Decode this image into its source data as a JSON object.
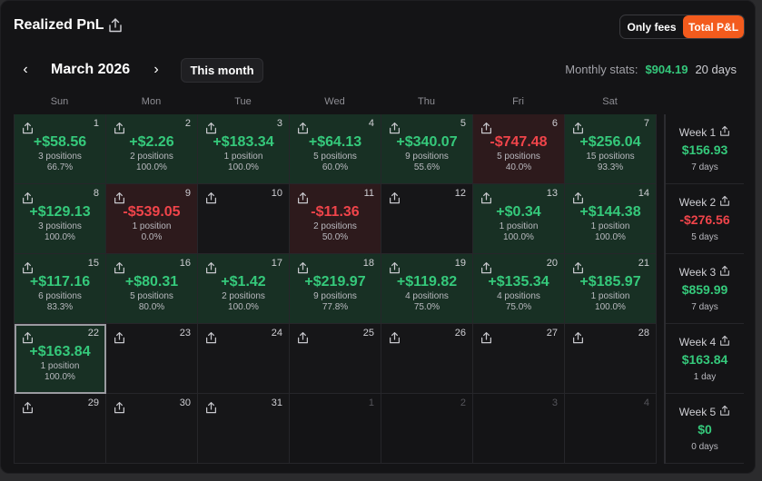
{
  "header": {
    "title": "Realized PnL",
    "toggle_only_fees": "Only fees",
    "toggle_total": "Total P&L"
  },
  "nav": {
    "prev": "‹",
    "next": "›",
    "month": "March 2026",
    "this_month": "This month"
  },
  "stats": {
    "label": "Monthly stats:",
    "value": "$904.19",
    "days": "20 days"
  },
  "weekdays": [
    "Sun",
    "Mon",
    "Tue",
    "Wed",
    "Thu",
    "Fri",
    "Sat"
  ],
  "days": [
    {
      "num": "1",
      "amount": "+$58.56",
      "positions": "3 positions",
      "rate": "66.7%",
      "kind": "pos"
    },
    {
      "num": "2",
      "amount": "+$2.26",
      "positions": "2 positions",
      "rate": "100.0%",
      "kind": "pos"
    },
    {
      "num": "3",
      "amount": "+$183.34",
      "positions": "1 position",
      "rate": "100.0%",
      "kind": "pos"
    },
    {
      "num": "4",
      "amount": "+$64.13",
      "positions": "5 positions",
      "rate": "60.0%",
      "kind": "pos"
    },
    {
      "num": "5",
      "amount": "+$340.07",
      "positions": "9 positions",
      "rate": "55.6%",
      "kind": "pos"
    },
    {
      "num": "6",
      "amount": "-$747.48",
      "positions": "5 positions",
      "rate": "40.0%",
      "kind": "neg"
    },
    {
      "num": "7",
      "amount": "+$256.04",
      "positions": "15 positions",
      "rate": "93.3%",
      "kind": "pos"
    },
    {
      "num": "8",
      "amount": "+$129.13",
      "positions": "3 positions",
      "rate": "100.0%",
      "kind": "pos"
    },
    {
      "num": "9",
      "amount": "-$539.05",
      "positions": "1 position",
      "rate": "0.0%",
      "kind": "neg"
    },
    {
      "num": "10",
      "amount": "",
      "positions": "",
      "rate": "",
      "kind": "empty"
    },
    {
      "num": "11",
      "amount": "-$11.36",
      "positions": "2 positions",
      "rate": "50.0%",
      "kind": "neg"
    },
    {
      "num": "12",
      "amount": "",
      "positions": "",
      "rate": "",
      "kind": "empty"
    },
    {
      "num": "13",
      "amount": "+$0.34",
      "positions": "1 position",
      "rate": "100.0%",
      "kind": "pos"
    },
    {
      "num": "14",
      "amount": "+$144.38",
      "positions": "1 position",
      "rate": "100.0%",
      "kind": "pos"
    },
    {
      "num": "15",
      "amount": "+$117.16",
      "positions": "6 positions",
      "rate": "83.3%",
      "kind": "pos"
    },
    {
      "num": "16",
      "amount": "+$80.31",
      "positions": "5 positions",
      "rate": "80.0%",
      "kind": "pos"
    },
    {
      "num": "17",
      "amount": "+$1.42",
      "positions": "2 positions",
      "rate": "100.0%",
      "kind": "pos"
    },
    {
      "num": "18",
      "amount": "+$219.97",
      "positions": "9 positions",
      "rate": "77.8%",
      "kind": "pos"
    },
    {
      "num": "19",
      "amount": "+$119.82",
      "positions": "4 positions",
      "rate": "75.0%",
      "kind": "pos"
    },
    {
      "num": "20",
      "amount": "+$135.34",
      "positions": "4 positions",
      "rate": "75.0%",
      "kind": "pos"
    },
    {
      "num": "21",
      "amount": "+$185.97",
      "positions": "1 position",
      "rate": "100.0%",
      "kind": "pos"
    },
    {
      "num": "22",
      "amount": "+$163.84",
      "positions": "1 position",
      "rate": "100.0%",
      "kind": "pos",
      "selected": true
    },
    {
      "num": "23",
      "amount": "",
      "positions": "",
      "rate": "",
      "kind": "empty"
    },
    {
      "num": "24",
      "amount": "",
      "positions": "",
      "rate": "",
      "kind": "empty"
    },
    {
      "num": "25",
      "amount": "",
      "positions": "",
      "rate": "",
      "kind": "empty"
    },
    {
      "num": "26",
      "amount": "",
      "positions": "",
      "rate": "",
      "kind": "empty"
    },
    {
      "num": "27",
      "amount": "",
      "positions": "",
      "rate": "",
      "kind": "empty"
    },
    {
      "num": "28",
      "amount": "",
      "positions": "",
      "rate": "",
      "kind": "empty"
    },
    {
      "num": "29",
      "amount": "",
      "positions": "",
      "rate": "",
      "kind": "empty"
    },
    {
      "num": "30",
      "amount": "",
      "positions": "",
      "rate": "",
      "kind": "empty"
    },
    {
      "num": "31",
      "amount": "",
      "positions": "",
      "rate": "",
      "kind": "empty"
    },
    {
      "num": "1",
      "amount": "",
      "positions": "",
      "rate": "",
      "kind": "other"
    },
    {
      "num": "2",
      "amount": "",
      "positions": "",
      "rate": "",
      "kind": "other"
    },
    {
      "num": "3",
      "amount": "",
      "positions": "",
      "rate": "",
      "kind": "other"
    },
    {
      "num": "4",
      "amount": "",
      "positions": "",
      "rate": "",
      "kind": "other"
    }
  ],
  "weeks": [
    {
      "label": "Week 1",
      "value": "$156.93",
      "days": "7 days",
      "kind": "pos"
    },
    {
      "label": "Week 2",
      "value": "-$276.56",
      "days": "5 days",
      "kind": "neg"
    },
    {
      "label": "Week 3",
      "value": "$859.99",
      "days": "7 days",
      "kind": "pos"
    },
    {
      "label": "Week 4",
      "value": "$163.84",
      "days": "1 day",
      "kind": "pos"
    },
    {
      "label": "Week 5",
      "value": "$0",
      "days": "0 days",
      "kind": "pos"
    }
  ],
  "colors": {
    "positive": "#35c97b",
    "negative": "#f0444a",
    "accent": "#f35b1d"
  }
}
